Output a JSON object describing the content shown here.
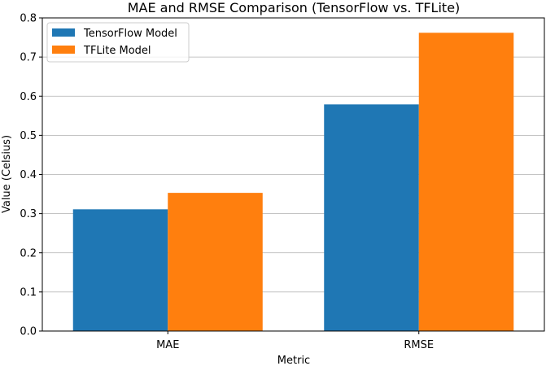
{
  "chart_data": {
    "type": "bar",
    "title": "MAE and RMSE Comparison (TensorFlow vs. TFLite)",
    "xlabel": "Metric",
    "ylabel": "Value (Celsius)",
    "categories": [
      "MAE",
      "RMSE"
    ],
    "series": [
      {
        "name": "TensorFlow Model",
        "values": [
          0.311,
          0.579
        ],
        "color": "#1f77b4"
      },
      {
        "name": "TFLite Model",
        "values": [
          0.353,
          0.762
        ],
        "color": "#ff7f0e"
      }
    ],
    "ylim": [
      0,
      0.8
    ],
    "yticks": [
      "0.0",
      "0.1",
      "0.2",
      "0.3",
      "0.4",
      "0.5",
      "0.6",
      "0.7",
      "0.8"
    ],
    "grid": "horizontal",
    "legend_position": "top-left"
  }
}
